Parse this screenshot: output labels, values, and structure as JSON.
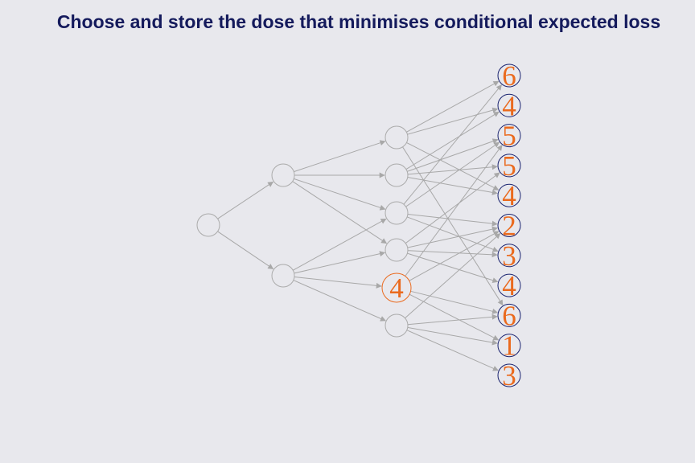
{
  "title": "Choose and store the dose that minimises conditional expected loss",
  "colors": {
    "background": "#e8e8ed",
    "title": "#141a5c",
    "edge": "#a8a8a8",
    "plain_node_stroke": "#ababab",
    "leaf_node_stroke": "#1b2470",
    "highlight": "#ea6a1e"
  },
  "tree": {
    "root": {
      "label": ""
    },
    "level1": [
      {
        "label": ""
      },
      {
        "label": ""
      }
    ],
    "level2": [
      {
        "label": ""
      },
      {
        "label": ""
      },
      {
        "label": ""
      },
      {
        "label": ""
      },
      {
        "label": "4",
        "highlighted": true
      },
      {
        "label": ""
      }
    ],
    "leaves": [
      "6",
      "4",
      "5",
      "5",
      "4",
      "2",
      "3",
      "4",
      "6",
      "1",
      "3"
    ]
  },
  "edges": {
    "root_to_level1": [
      [
        0,
        0
      ],
      [
        0,
        1
      ]
    ],
    "level1_to_level2": [
      [
        0,
        0
      ],
      [
        0,
        1
      ],
      [
        0,
        2
      ],
      [
        0,
        3
      ],
      [
        1,
        2
      ],
      [
        1,
        3
      ],
      [
        1,
        4
      ],
      [
        1,
        5
      ]
    ],
    "level2_to_leaves": [
      [
        0,
        0
      ],
      [
        0,
        1
      ],
      [
        0,
        4
      ],
      [
        0,
        8
      ],
      [
        1,
        1
      ],
      [
        1,
        2
      ],
      [
        1,
        3
      ],
      [
        1,
        4
      ],
      [
        2,
        0
      ],
      [
        2,
        2
      ],
      [
        2,
        5
      ],
      [
        2,
        6
      ],
      [
        3,
        3
      ],
      [
        3,
        5
      ],
      [
        3,
        6
      ],
      [
        3,
        7
      ],
      [
        4,
        2
      ],
      [
        4,
        5
      ],
      [
        4,
        8
      ],
      [
        4,
        9
      ],
      [
        5,
        5
      ],
      [
        5,
        8
      ],
      [
        5,
        9
      ],
      [
        5,
        10
      ]
    ]
  }
}
